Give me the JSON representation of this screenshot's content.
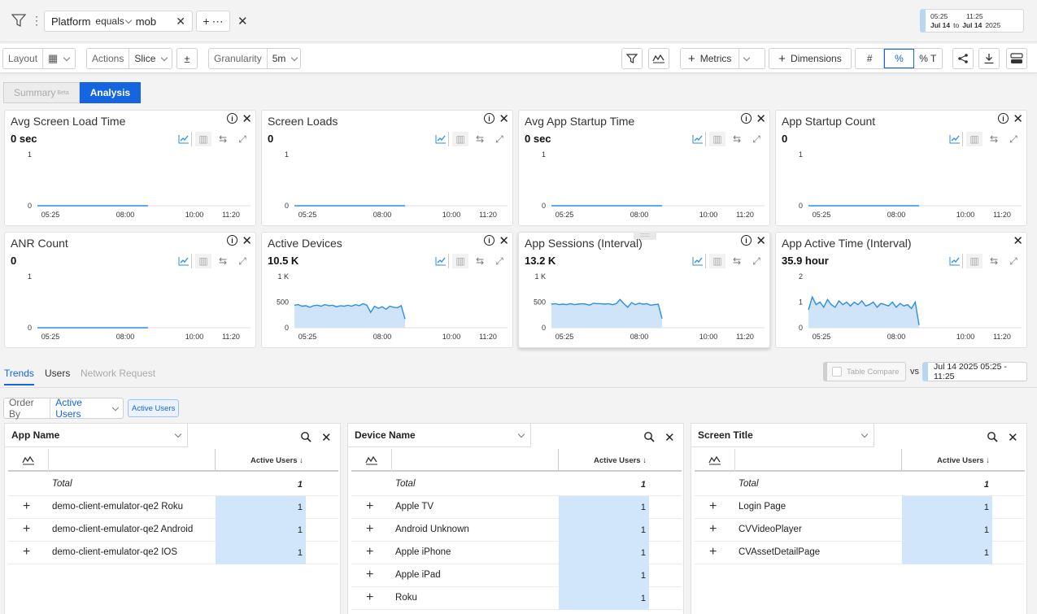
{
  "filter": {
    "field": "Platform",
    "operator": "equals",
    "value": "mob",
    "add_icon": "plus-icon"
  },
  "date_range": {
    "start_time": "05:25",
    "end_time": "11:25",
    "start_date": "Jul 14",
    "to": "to",
    "end_date": "Jul 14",
    "year": "2025"
  },
  "toolbar": {
    "layout_label": "Layout",
    "actions_label": "Actions",
    "actions_value": "Slice",
    "granularity_label": "Granularity",
    "granularity_value": "5m",
    "metrics_label": "Metrics",
    "dimensions_label": "Dimensions",
    "mode_count": "#",
    "mode_percent": "%",
    "mode_percent_total": "% T"
  },
  "view_tabs": {
    "summary": "Summary",
    "summary_badge": "Beta",
    "analysis": "Analysis"
  },
  "cards": [
    {
      "title": "Avg Screen Load Time",
      "value": "0 sec",
      "yticks": [
        "1",
        "0"
      ],
      "ymax": 1,
      "series": [
        0,
        0,
        0,
        0,
        0,
        0,
        0,
        0,
        0,
        0,
        0,
        0,
        0,
        0,
        0,
        0,
        0,
        0,
        0,
        0,
        0,
        0,
        0,
        0,
        0,
        0,
        0,
        0,
        0,
        0
      ],
      "has_info": true,
      "has_close": true,
      "fill": false
    },
    {
      "title": "Screen Loads",
      "value": "0",
      "yticks": [
        "1",
        "0"
      ],
      "ymax": 1,
      "series": [
        0,
        0,
        0,
        0,
        0,
        0,
        0,
        0,
        0,
        0,
        0,
        0,
        0,
        0,
        0,
        0,
        0,
        0,
        0,
        0,
        0,
        0,
        0,
        0,
        0,
        0,
        0,
        0,
        0,
        0
      ],
      "has_info": true,
      "has_close": true,
      "fill": false
    },
    {
      "title": "Avg App Startup Time",
      "value": "0 sec",
      "yticks": [
        "1",
        "0"
      ],
      "ymax": 1,
      "series": [
        0,
        0,
        0,
        0,
        0,
        0,
        0,
        0,
        0,
        0,
        0,
        0,
        0,
        0,
        0,
        0,
        0,
        0,
        0,
        0,
        0,
        0,
        0,
        0,
        0,
        0,
        0,
        0,
        0,
        0
      ],
      "has_info": true,
      "has_close": true,
      "fill": false
    },
    {
      "title": "App Startup Count",
      "value": "0",
      "yticks": [
        "1",
        "0"
      ],
      "ymax": 1,
      "series": [
        0,
        0,
        0,
        0,
        0,
        0,
        0,
        0,
        0,
        0,
        0,
        0,
        0,
        0,
        0,
        0,
        0,
        0,
        0,
        0,
        0,
        0,
        0,
        0,
        0,
        0,
        0,
        0,
        0,
        0
      ],
      "has_info": true,
      "has_close": true,
      "fill": false
    },
    {
      "title": "ANR Count",
      "value": "0",
      "yticks": [
        "1",
        "0"
      ],
      "ymax": 1,
      "series": [
        0,
        0,
        0,
        0,
        0,
        0,
        0,
        0,
        0,
        0,
        0,
        0,
        0,
        0,
        0,
        0,
        0,
        0,
        0,
        0,
        0,
        0,
        0,
        0,
        0,
        0,
        0,
        0,
        0,
        0
      ],
      "has_info": true,
      "has_close": true,
      "fill": false
    },
    {
      "title": "Active Devices",
      "value": "10.5 K",
      "yticks": [
        "1 K",
        "500",
        "0"
      ],
      "ymax": 1000,
      "series": [
        440,
        450,
        420,
        430,
        400,
        430,
        440,
        420,
        450,
        430,
        440,
        410,
        430,
        420,
        440,
        420,
        450,
        430,
        470,
        440,
        300,
        420,
        380,
        410,
        360,
        420,
        400,
        390,
        430,
        170
      ],
      "has_info": true,
      "has_close": true,
      "fill": true
    },
    {
      "title": "App Sessions (Interval)",
      "value": "13.2 K",
      "yticks": [
        "1 K",
        "500",
        "0"
      ],
      "ymax": 1000,
      "series": [
        460,
        470,
        450,
        460,
        450,
        470,
        450,
        460,
        470,
        460,
        440,
        480,
        470,
        470,
        460,
        470,
        450,
        470,
        550,
        470,
        400,
        490,
        450,
        480,
        460,
        470,
        440,
        450,
        460,
        180
      ],
      "has_info": true,
      "has_close": true,
      "fill": true
    },
    {
      "title": "App Active Time (Interval)",
      "value": "35.9 hour",
      "yticks": [
        "2",
        "1",
        "0"
      ],
      "ymax": 2,
      "series": [
        0.7,
        1.2,
        0.9,
        1.0,
        0.8,
        1.1,
        0.9,
        0.8,
        1.05,
        0.9,
        1.0,
        0.85,
        1.0,
        0.9,
        1.05,
        0.85,
        0.9,
        1.0,
        0.8,
        0.95,
        0.9,
        0.85,
        1.0,
        0.8,
        0.95,
        0.85,
        0.9,
        0.75,
        1.0,
        0.1
      ],
      "has_info": false,
      "has_close": true,
      "fill": true
    }
  ],
  "xticks": [
    "05:25",
    "08:00",
    "10:00",
    "11:20"
  ],
  "sub_tabs": {
    "trends": "Trends",
    "users": "Users",
    "network": "Network Request"
  },
  "compare": {
    "table_compare": "Table Compare",
    "vs": "vs",
    "range": "Jul 14 2025 05:25 - 11:25"
  },
  "order_by": {
    "label": "Order By",
    "value": "Active Users",
    "pill": "Active Users"
  },
  "tables": [
    {
      "dimension": "App Name",
      "metric_header": "Active Users ↓",
      "total_label": "Total",
      "total_value": "1",
      "rows": [
        {
          "name": "demo-client-emulator-qe2 Roku",
          "value": "1"
        },
        {
          "name": "demo-client-emulator-qe2 Android",
          "value": "1"
        },
        {
          "name": "demo-client-emulator-qe2 IOS",
          "value": "1"
        }
      ]
    },
    {
      "dimension": "Device Name",
      "metric_header": "Active Users ↓",
      "total_label": "Total",
      "total_value": "1",
      "rows": [
        {
          "name": "Apple TV",
          "value": "1"
        },
        {
          "name": "Android Unknown",
          "value": "1"
        },
        {
          "name": "Apple iPhone",
          "value": "1"
        },
        {
          "name": "Apple iPad",
          "value": "1"
        },
        {
          "name": "Roku",
          "value": "1"
        }
      ]
    },
    {
      "dimension": "Screen Title",
      "metric_header": "Active Users ↓",
      "total_label": "Total",
      "total_value": "1",
      "rows": [
        {
          "name": "Login Page",
          "value": "1"
        },
        {
          "name": "CVVideoPlayer",
          "value": "1"
        },
        {
          "name": "CVAssetDetailPage",
          "value": "1"
        }
      ]
    }
  ],
  "colors": {
    "accent": "#1565e0",
    "line": "#2a8ee6",
    "area": "#cfe4f8",
    "bar": "#d1e6fa"
  }
}
